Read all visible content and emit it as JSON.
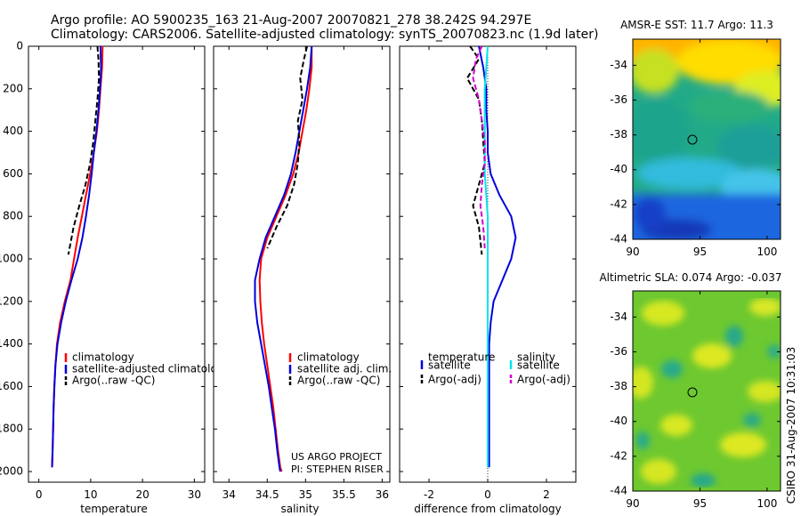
{
  "header": {
    "line1": "Argo profile: AO 5900235_163 21-Aug-2007 20070821_278 38.242S 94.297E",
    "line2": "Climatology: CARS2006. Satellite-adjusted climatology: synTS_20070823.nc (1.9d later)"
  },
  "credit": {
    "project": "US ARGO PROJECT",
    "pi": "PI: STEPHEN RISER",
    "stamp": "CSIRO 31-Aug-2007 10:31:03"
  },
  "colors": {
    "climatology": "#ff0000",
    "satellite": "#0000dd",
    "argo": "#000000",
    "satellite_salinity": "#00e5ee",
    "argo_salinity_diff": "#d100d1"
  },
  "chart_data": [
    {
      "type": "line",
      "id": "temperature",
      "xlabel": "temperature",
      "xlim": [
        -2,
        32
      ],
      "ylim": [
        2050,
        0
      ],
      "xticks": [
        0,
        10,
        20,
        30
      ],
      "yticks": [
        0,
        200,
        400,
        600,
        800,
        1000,
        1200,
        1400,
        1600,
        1800,
        2000
      ],
      "y_reversed": true,
      "legend": {
        "placement": "lower-right",
        "entries": [
          "climatology",
          "satellite-adjusted climatology",
          "Argo(..raw -QC)"
        ]
      },
      "series": [
        {
          "name": "climatology",
          "style": "solid",
          "color": "climatology",
          "x": [
            12.3,
            12.2,
            11.9,
            11.6,
            11.2,
            10.6,
            9.9,
            9.1,
            8.3,
            7.5,
            6.8,
            6.1,
            5.0,
            4.1,
            3.5,
            3.2,
            3.0,
            2.85,
            2.75,
            2.65,
            2.55
          ],
          "y": [
            0,
            100,
            200,
            300,
            400,
            500,
            600,
            700,
            800,
            900,
            1000,
            1100,
            1200,
            1300,
            1400,
            1500,
            1600,
            1700,
            1800,
            1900,
            1980
          ]
        },
        {
          "name": "satellite-adjusted climatology",
          "style": "solid",
          "color": "satellite",
          "x": [
            11.9,
            12.0,
            11.8,
            11.5,
            11.1,
            10.6,
            10.2,
            9.7,
            9.1,
            8.4,
            7.5,
            6.3,
            5.2,
            4.3,
            3.6,
            3.2,
            3.0,
            2.85,
            2.75,
            2.65,
            2.55
          ],
          "y": [
            0,
            100,
            200,
            300,
            400,
            500,
            600,
            700,
            800,
            900,
            1000,
            1100,
            1200,
            1300,
            1400,
            1500,
            1600,
            1700,
            1800,
            1900,
            1980
          ]
        },
        {
          "name": "Argo(..raw -QC)",
          "style": "dashed",
          "color": "argo",
          "x": [
            11.3,
            11.5,
            11.6,
            11.3,
            10.9,
            10.5,
            9.9,
            9.0,
            7.8,
            6.7,
            5.7
          ],
          "y": [
            0,
            60,
            150,
            250,
            350,
            450,
            550,
            650,
            750,
            850,
            980
          ]
        }
      ]
    },
    {
      "type": "line",
      "id": "salinity",
      "xlabel": "salinity",
      "xlim": [
        33.8,
        36.1
      ],
      "ylim": [
        2050,
        0
      ],
      "xticks": [
        34,
        34.5,
        35,
        35.5,
        36
      ],
      "y_reversed": true,
      "legend": {
        "placement": "lower-right",
        "entries": [
          "climatology",
          "satellite adj. clim.",
          "Argo(..raw -QC)"
        ]
      },
      "series": [
        {
          "name": "climatology",
          "style": "solid",
          "color": "climatology",
          "x": [
            35.08,
            35.08,
            35.05,
            35.01,
            34.96,
            34.91,
            34.84,
            34.74,
            34.62,
            34.5,
            34.42,
            34.4,
            34.41,
            34.43,
            34.46,
            34.5,
            34.54,
            34.58,
            34.61,
            34.64,
            34.67,
            34.69
          ],
          "y": [
            0,
            100,
            200,
            300,
            400,
            500,
            600,
            700,
            800,
            900,
            1000,
            1100,
            1200,
            1300,
            1400,
            1500,
            1600,
            1700,
            1800,
            1900,
            1980,
            2000
          ]
        },
        {
          "name": "satellite adj. clim.",
          "style": "solid",
          "color": "satellite",
          "x": [
            35.08,
            35.06,
            35.02,
            34.97,
            34.92,
            34.87,
            34.81,
            34.72,
            34.6,
            34.48,
            34.4,
            34.34,
            34.34,
            34.37,
            34.42,
            34.47,
            34.52,
            34.56,
            34.6,
            34.63,
            34.66,
            34.67
          ],
          "y": [
            0,
            100,
            200,
            300,
            400,
            500,
            600,
            700,
            800,
            900,
            1000,
            1100,
            1200,
            1300,
            1400,
            1500,
            1600,
            1700,
            1800,
            1900,
            1980,
            2000
          ]
        },
        {
          "name": "Argo(..raw -QC)",
          "style": "dashed",
          "color": "argo",
          "x": [
            35.02,
            34.98,
            34.93,
            34.96,
            34.9,
            34.92,
            34.9,
            34.85,
            34.76,
            34.62,
            34.5
          ],
          "y": [
            0,
            60,
            150,
            250,
            350,
            450,
            550,
            650,
            750,
            850,
            950
          ]
        }
      ]
    },
    {
      "type": "line",
      "id": "difference",
      "xlabel": "difference from climatology",
      "xlim": [
        -3,
        3
      ],
      "ylim": [
        2050,
        0
      ],
      "xticks": [
        -2,
        0,
        2
      ],
      "y_reversed": true,
      "zero_line": true,
      "legend": {
        "placement": "lower-center",
        "headings": [
          "temperature",
          "salinity"
        ],
        "entries": [
          "satellite",
          "Argo(-adj)",
          "satellite",
          "Argo(-adj)"
        ]
      },
      "series": [
        {
          "name": "temperature satellite",
          "style": "solid",
          "color": "satellite",
          "x": [
            -0.3,
            -0.15,
            -0.05,
            -0.05,
            0.0,
            0.0,
            0.1,
            0.4,
            0.8,
            0.95,
            0.8,
            0.5,
            0.2,
            0.1,
            0.05,
            0.05,
            0.05,
            0.05,
            0.05,
            0.05,
            0.05
          ],
          "y": [
            0,
            100,
            200,
            300,
            400,
            500,
            600,
            700,
            800,
            900,
            1000,
            1100,
            1200,
            1300,
            1400,
            1500,
            1600,
            1700,
            1800,
            1900,
            1980
          ]
        },
        {
          "name": "temperature Argo(-adj)",
          "style": "dashed",
          "color": "argo",
          "x": [
            -0.6,
            -0.3,
            -0.7,
            -0.3,
            -0.2,
            -0.15,
            -0.1,
            -0.3,
            -0.5,
            -0.3,
            -0.2
          ],
          "y": [
            0,
            60,
            150,
            250,
            350,
            450,
            550,
            650,
            750,
            850,
            980
          ]
        },
        {
          "name": "salinity satellite",
          "style": "solid",
          "color": "satellite_salinity",
          "x": [
            0.0,
            -0.05,
            -0.1,
            -0.1,
            -0.1,
            -0.1,
            -0.1,
            -0.05,
            0.0,
            0.0,
            0.0,
            0.0,
            0.0,
            0.0,
            0.0,
            0.0,
            0.0,
            0.0,
            0.0,
            0.0,
            0.0
          ],
          "y": [
            0,
            100,
            200,
            300,
            400,
            500,
            600,
            700,
            800,
            900,
            1000,
            1100,
            1200,
            1300,
            1400,
            1500,
            1600,
            1700,
            1800,
            1900,
            1980
          ]
        },
        {
          "name": "salinity Argo(-adj)",
          "style": "dashed",
          "color": "argo_salinity_diff",
          "x": [
            -0.2,
            -0.4,
            -0.5,
            -0.3,
            -0.2,
            -0.1,
            -0.1,
            -0.2,
            -0.25,
            -0.15,
            -0.1
          ],
          "y": [
            0,
            60,
            150,
            250,
            350,
            450,
            550,
            650,
            750,
            850,
            950
          ]
        }
      ]
    },
    {
      "type": "heatmap",
      "id": "sst-map",
      "title": "AMSR-E SST: 11.7  Argo: 11.3",
      "xlim": [
        90,
        101
      ],
      "ylim": [
        -44,
        -32.5
      ],
      "xticks": [
        90,
        95,
        100
      ],
      "yticks": [
        -34,
        -36,
        -38,
        -40,
        -42,
        -44
      ],
      "marker": {
        "lon": 94.3,
        "lat": -38.2
      }
    },
    {
      "type": "heatmap",
      "id": "sla-map",
      "title": "Altimetric SLA: 0.074  Argo: -0.037",
      "xlim": [
        90,
        101
      ],
      "ylim": [
        -44,
        -32.5
      ],
      "xticks": [
        90,
        95,
        100
      ],
      "yticks": [
        -34,
        -36,
        -38,
        -40,
        -42,
        -44
      ],
      "marker": {
        "lon": 94.3,
        "lat": -38.2
      }
    }
  ]
}
